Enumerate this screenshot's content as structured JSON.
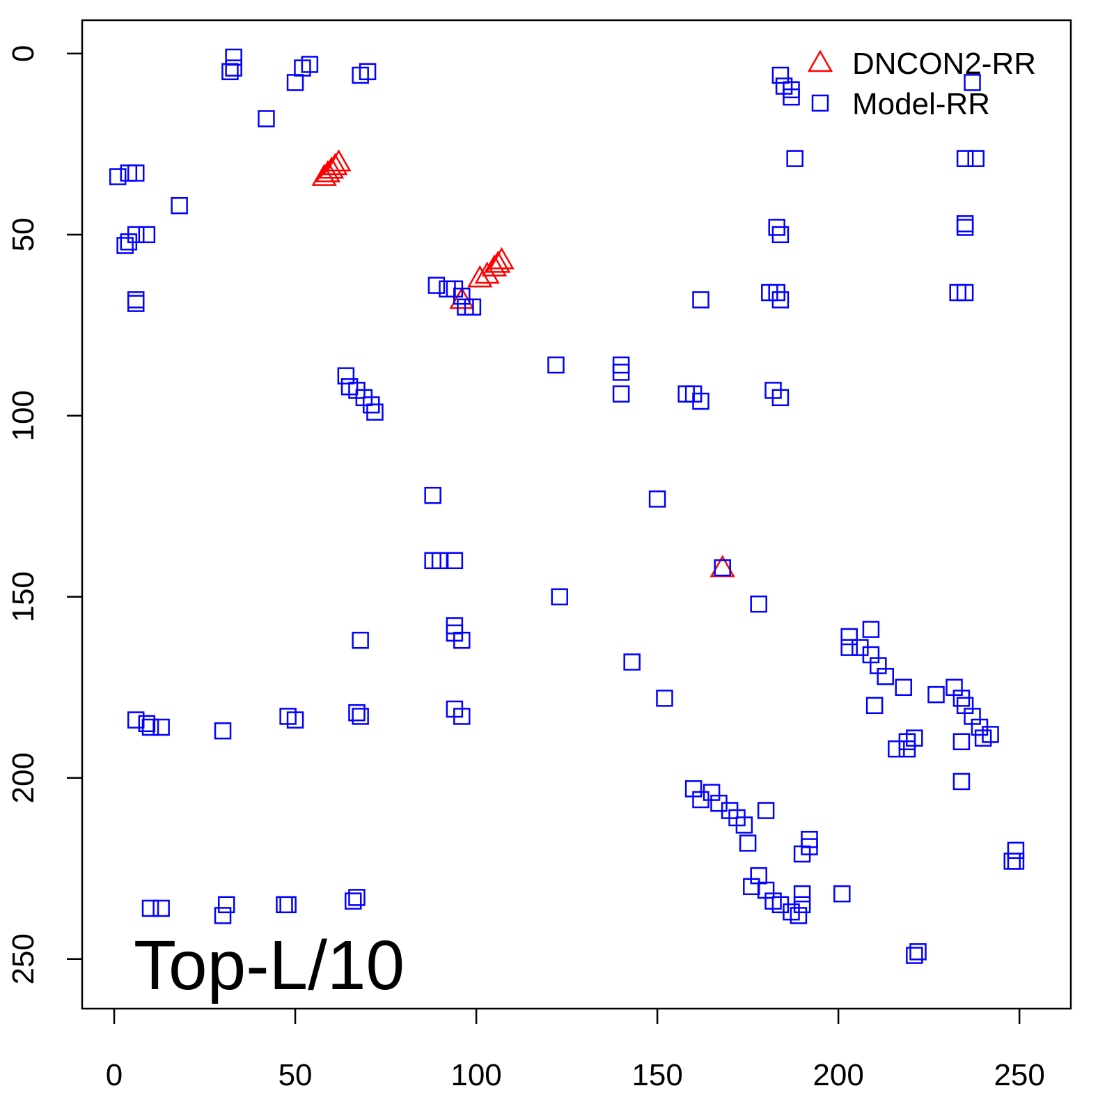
{
  "chart_data": {
    "type": "scatter",
    "annotation": "Top-L/10",
    "xlim": [
      -8.85,
      264.2
    ],
    "ylim": [
      263.7,
      -9.2
    ],
    "xticks": [
      0,
      50,
      100,
      150,
      200,
      250
    ],
    "yticks": [
      0,
      50,
      100,
      150,
      200,
      250
    ],
    "legend": "top-right",
    "series": [
      {
        "name": "DNCON2-RR",
        "color": "#ff0000",
        "marker": "triangle",
        "x": [
          58,
          59,
          60,
          61,
          62,
          101,
          103,
          105,
          106,
          107,
          96,
          168
        ],
        "y": [
          34,
          33,
          32,
          31,
          30,
          62,
          61,
          59,
          58,
          57,
          68,
          142
        ]
      },
      {
        "name": "Model-RR",
        "color": "#0000ff",
        "marker": "square",
        "x": [
          33,
          33,
          32,
          50,
          52,
          54,
          70,
          68,
          42,
          1,
          6,
          4,
          18,
          9,
          6,
          3,
          4,
          6,
          6,
          184,
          185,
          187,
          187,
          188,
          237,
          235,
          238,
          235,
          235,
          183,
          184,
          235,
          233,
          183,
          184,
          181,
          162,
          89,
          92,
          94,
          96,
          99,
          97,
          122,
          140,
          140,
          140,
          158,
          160,
          162,
          182,
          184,
          64,
          65,
          67,
          69,
          71,
          72,
          88,
          150,
          88,
          90,
          94,
          123,
          178,
          168,
          68,
          94,
          94,
          96,
          143,
          152,
          203,
          203,
          206,
          209,
          209,
          211,
          213,
          218,
          210,
          227,
          232,
          234,
          235,
          237,
          239,
          240,
          242,
          234,
          216,
          219,
          221,
          234,
          219,
          6,
          9,
          10,
          13,
          30,
          48,
          50,
          67,
          68,
          94,
          96,
          160,
          162,
          165,
          167,
          170,
          172,
          174,
          175,
          180,
          190,
          192,
          192,
          178,
          176,
          180,
          182,
          184,
          187,
          189,
          190,
          190,
          201,
          249,
          248,
          249,
          222,
          221,
          10,
          13,
          30,
          31,
          47,
          48,
          67,
          66
        ],
        "y": [
          4,
          1,
          5,
          8,
          4,
          3,
          5,
          6,
          18,
          34,
          33,
          33,
          42,
          50,
          50,
          53,
          52,
          69,
          68,
          6,
          9,
          12,
          10,
          29,
          8,
          29,
          29,
          47,
          48,
          48,
          50,
          66,
          66,
          66,
          68,
          66,
          68,
          64,
          65,
          65,
          67,
          70,
          70,
          86,
          86,
          88,
          94,
          94,
          94,
          96,
          93,
          95,
          89,
          92,
          93,
          95,
          97,
          99,
          122,
          123,
          140,
          140,
          140,
          150,
          152,
          142,
          162,
          158,
          160,
          162,
          168,
          178,
          161,
          164,
          164,
          159,
          166,
          169,
          172,
          175,
          180,
          177,
          175,
          178,
          180,
          183,
          186,
          189,
          188,
          190,
          192,
          190,
          189,
          201,
          192,
          184,
          185,
          186,
          186,
          187,
          183,
          184,
          182,
          183,
          181,
          183,
          203,
          206,
          204,
          207,
          209,
          211,
          213,
          218,
          209,
          221,
          217,
          219,
          227,
          230,
          231,
          234,
          235,
          237,
          238,
          232,
          235,
          232,
          220,
          223,
          223,
          248,
          249,
          236,
          236,
          238,
          235,
          235,
          235,
          233,
          234
        ]
      }
    ]
  }
}
